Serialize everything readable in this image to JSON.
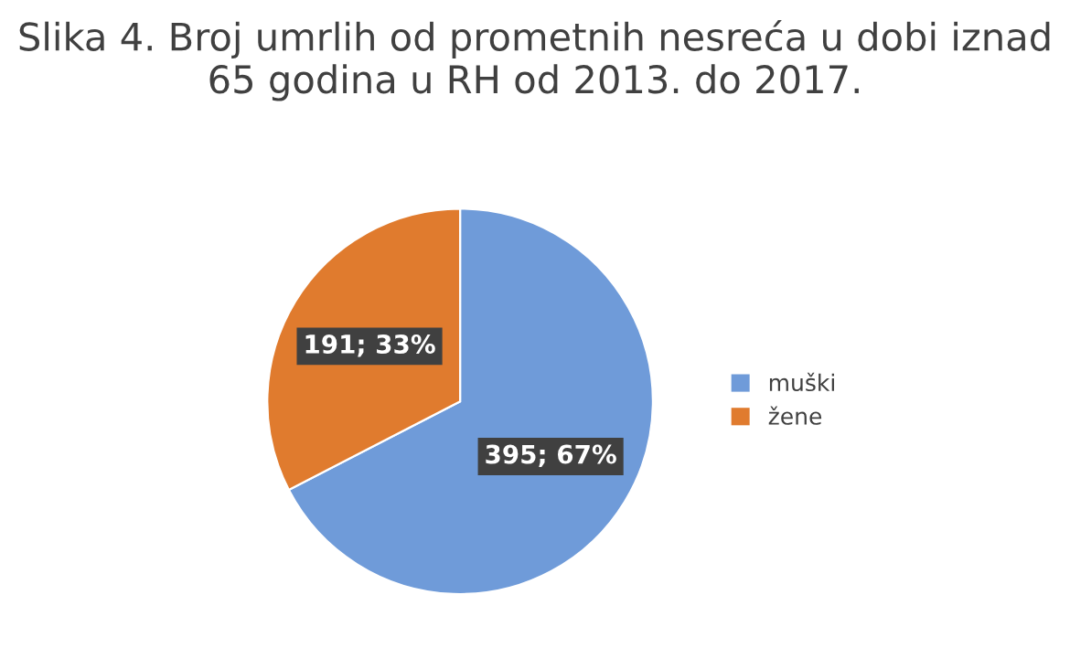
{
  "chart_data": {
    "type": "pie",
    "title": "Slika 4. Broj umrlih od prometnih nesreća u dobi iznad 65 godina u RH od 2013. do 2017.",
    "categories": [
      "muški",
      "žene"
    ],
    "values": [
      395,
      191
    ],
    "colors": [
      "#6f9bd9",
      "#e07b2e"
    ],
    "value_labels": [
      "395; 67%",
      "191; 33%"
    ],
    "legend": "right"
  }
}
